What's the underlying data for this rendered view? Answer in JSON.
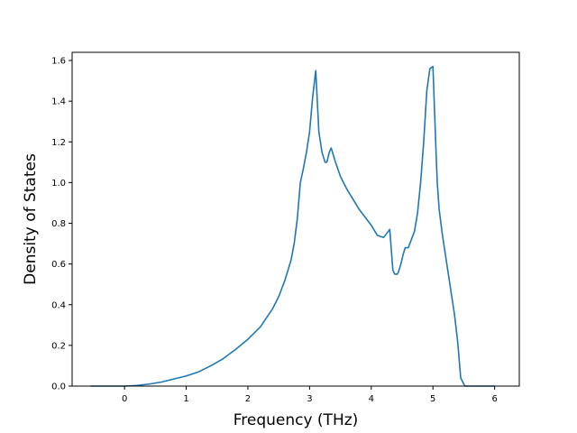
{
  "chart_data": {
    "type": "line",
    "title": "",
    "xlabel": "Frequency (THz)",
    "ylabel": "Density of States",
    "xlim": [
      -0.85,
      6.4
    ],
    "ylim": [
      0.0,
      1.64
    ],
    "xticks": [
      0,
      1,
      2,
      3,
      4,
      5,
      6
    ],
    "yticks": [
      0.0,
      0.2,
      0.4,
      0.6,
      0.8,
      1.0,
      1.2,
      1.4,
      1.6
    ],
    "xtick_labels": [
      "0",
      "1",
      "2",
      "3",
      "4",
      "5",
      "6"
    ],
    "ytick_labels": [
      "0.0",
      "0.2",
      "0.4",
      "0.6",
      "0.8",
      "1.0",
      "1.2",
      "1.4",
      "1.6"
    ],
    "grid": false,
    "legend": "none",
    "series": [
      {
        "color": "#1f77b4",
        "x": [
          -0.55,
          -0.3,
          0.0,
          0.2,
          0.4,
          0.6,
          0.8,
          1.0,
          1.2,
          1.4,
          1.6,
          1.8,
          2.0,
          2.2,
          2.4,
          2.5,
          2.6,
          2.7,
          2.75,
          2.8,
          2.85,
          2.9,
          2.95,
          3.0,
          3.05,
          3.08,
          3.1,
          3.15,
          3.2,
          3.25,
          3.28,
          3.32,
          3.35,
          3.38,
          3.42,
          3.5,
          3.6,
          3.7,
          3.8,
          3.9,
          4.0,
          4.1,
          4.2,
          4.3,
          4.35,
          4.38,
          4.4,
          4.42,
          4.44,
          4.48,
          4.52,
          4.55,
          4.6,
          4.65,
          4.7,
          4.75,
          4.8,
          4.85,
          4.9,
          4.95,
          5.0,
          5.05,
          5.07,
          5.1,
          5.15,
          5.2,
          5.25,
          5.3,
          5.35,
          5.4,
          5.45,
          5.5,
          5.52,
          5.55,
          5.6,
          5.8,
          6.0
        ],
        "y": [
          0.0,
          0.0,
          0.0,
          0.003,
          0.01,
          0.02,
          0.035,
          0.05,
          0.07,
          0.1,
          0.135,
          0.18,
          0.23,
          0.29,
          0.38,
          0.44,
          0.52,
          0.62,
          0.7,
          0.82,
          1.0,
          1.07,
          1.15,
          1.25,
          1.42,
          1.5,
          1.55,
          1.25,
          1.15,
          1.1,
          1.1,
          1.15,
          1.17,
          1.14,
          1.1,
          1.03,
          0.97,
          0.92,
          0.87,
          0.83,
          0.79,
          0.74,
          0.73,
          0.77,
          0.57,
          0.55,
          0.55,
          0.55,
          0.56,
          0.6,
          0.65,
          0.68,
          0.68,
          0.72,
          0.76,
          0.85,
          1.0,
          1.2,
          1.45,
          1.56,
          1.57,
          1.15,
          1.0,
          0.87,
          0.75,
          0.65,
          0.55,
          0.45,
          0.35,
          0.22,
          0.04,
          0.01,
          0.0,
          0.0,
          0.0,
          0.0,
          0.0
        ]
      }
    ]
  }
}
